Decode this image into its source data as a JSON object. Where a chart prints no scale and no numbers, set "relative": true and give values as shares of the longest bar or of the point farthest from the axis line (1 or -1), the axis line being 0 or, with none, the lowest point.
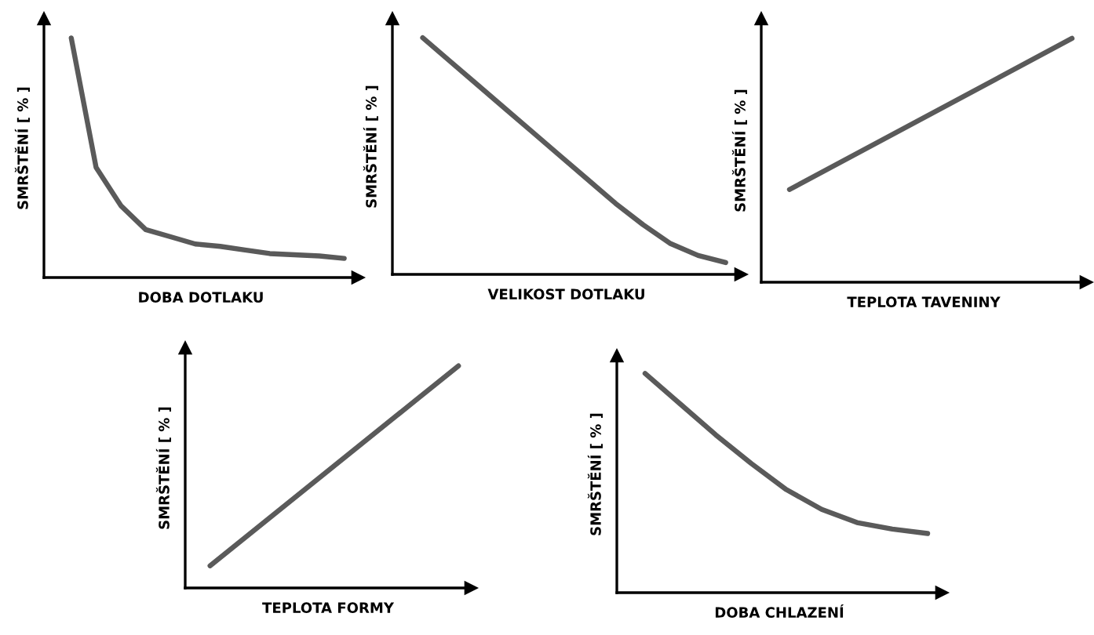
{
  "chart_data": [
    {
      "type": "line",
      "relative": true,
      "xlabel": "DOBA DOTLAKU",
      "ylabel": "SMRŠTĚNÍ [ % ]",
      "categories": [
        null,
        null,
        null,
        null,
        null,
        null,
        null,
        null,
        null,
        null,
        null,
        null
      ],
      "series": [
        {
          "color": "#5a5a5a",
          "values": [
            1.0,
            0.46,
            0.3,
            0.2,
            0.17,
            0.14,
            0.13,
            0.115,
            0.1,
            0.095,
            0.09,
            0.08
          ]
        }
      ]
    },
    {
      "type": "line",
      "relative": true,
      "xlabel": "VELIKOST DOTLAKU",
      "ylabel": "SMRŠTĚNÍ [ % ]",
      "categories": [
        null,
        null,
        null,
        null,
        null,
        null,
        null,
        null,
        null,
        null,
        null,
        null
      ],
      "series": [
        {
          "color": "#5a5a5a",
          "values": [
            1.0,
            0.9,
            0.8,
            0.7,
            0.6,
            0.5,
            0.4,
            0.3,
            0.21,
            0.13,
            0.08,
            0.05
          ]
        }
      ]
    },
    {
      "type": "line",
      "relative": true,
      "xlabel": "TEPLOTA TAVENINY",
      "ylabel": "SMRŠTĚNÍ [ % ]",
      "categories": [
        null,
        null
      ],
      "series": [
        {
          "color": "#5a5a5a",
          "values": [
            0.38,
            1.0
          ]
        }
      ]
    },
    {
      "type": "line",
      "relative": true,
      "xlabel": "TEPLOTA FORMY",
      "ylabel": "SMRŠTĚNÍ [ % ]",
      "categories": [
        null,
        null
      ],
      "series": [
        {
          "color": "#5a5a5a",
          "values": [
            0.1,
            1.0
          ]
        }
      ]
    },
    {
      "type": "line",
      "relative": true,
      "xlabel": "DOBA CHLAZENÍ",
      "ylabel": "SMRŠTĚNÍ [ % ]",
      "categories": [
        null,
        null,
        null,
        null,
        null,
        null,
        null,
        null,
        null
      ],
      "series": [
        {
          "color": "#5a5a5a",
          "values": [
            1.0,
            0.86,
            0.72,
            0.59,
            0.47,
            0.38,
            0.32,
            0.29,
            0.27
          ]
        }
      ]
    }
  ]
}
